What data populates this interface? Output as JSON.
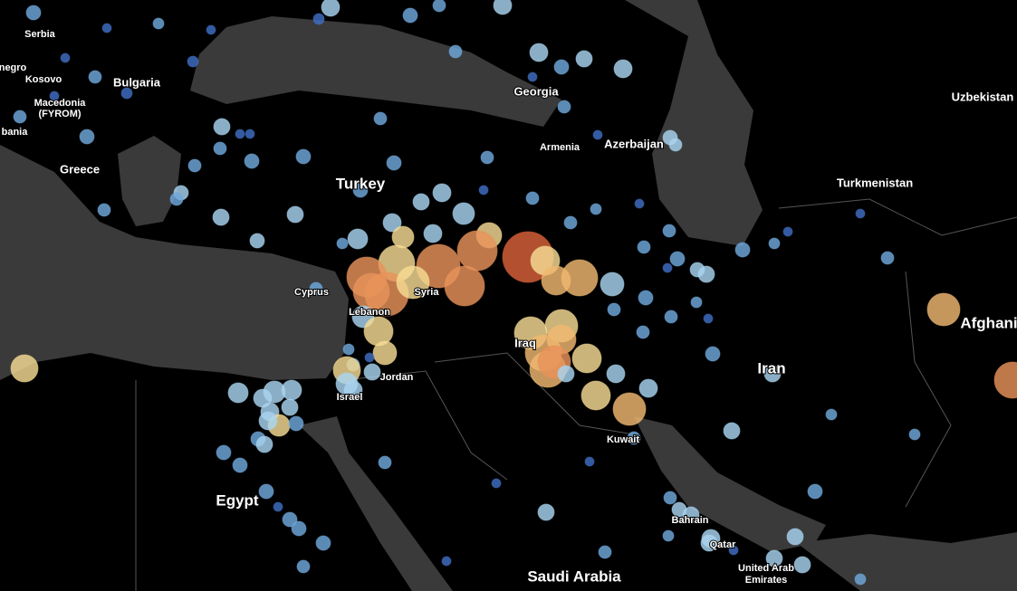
{
  "map": {
    "labels": [
      {
        "text": "Serbia"
      },
      {
        "text": "negro"
      },
      {
        "text": "Kosovo"
      },
      {
        "text": "Macedonia"
      },
      {
        "text": "(FYROM)"
      },
      {
        "text": "bania"
      },
      {
        "text": "Bulgaria"
      },
      {
        "text": "Greece"
      },
      {
        "text": "Turkey"
      },
      {
        "text": "Georgia"
      },
      {
        "text": "Armenia"
      },
      {
        "text": "Azerbaijan"
      },
      {
        "text": "Uzbekistan"
      },
      {
        "text": "Turkmenistan"
      },
      {
        "text": "Cyprus"
      },
      {
        "text": "Syria"
      },
      {
        "text": "Lebanon"
      },
      {
        "text": "Iraq"
      },
      {
        "text": "Jordan"
      },
      {
        "text": "Israel"
      },
      {
        "text": "Iran"
      },
      {
        "text": "Afghani"
      },
      {
        "text": "Kuwait"
      },
      {
        "text": "Egypt"
      },
      {
        "text": "Bahrain"
      },
      {
        "text": "Qatar"
      },
      {
        "text": "United Arab"
      },
      {
        "text": "Emirates"
      },
      {
        "text": "Saudi Arabia"
      }
    ]
  }
}
